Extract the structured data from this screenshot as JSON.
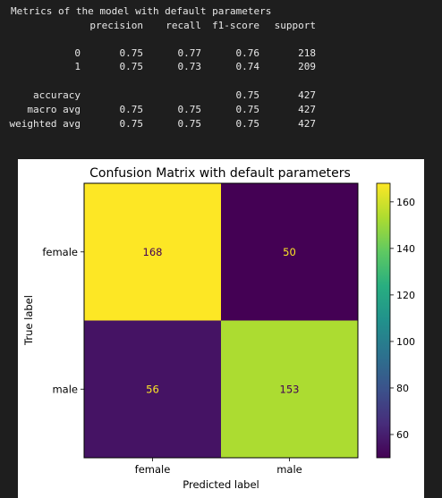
{
  "report": {
    "title": "Metrics of the model with default parameters",
    "headers": [
      "precision",
      "recall",
      "f1-score",
      "support"
    ],
    "rows": [
      {
        "label": "0",
        "precision": "0.75",
        "recall": "0.77",
        "f1": "0.76",
        "support": "218"
      },
      {
        "label": "1",
        "precision": "0.75",
        "recall": "0.73",
        "f1": "0.74",
        "support": "209"
      },
      {
        "label": "accuracy",
        "precision": "",
        "recall": "",
        "f1": "0.75",
        "support": "427"
      },
      {
        "label": "macro avg",
        "precision": "0.75",
        "recall": "0.75",
        "f1": "0.75",
        "support": "427"
      },
      {
        "label": "weighted avg",
        "precision": "0.75",
        "recall": "0.75",
        "f1": "0.75",
        "support": "427"
      }
    ]
  },
  "chart_data": {
    "type": "heatmap",
    "title": "Confusion Matrix with default parameters",
    "xlabel": "Predicted label",
    "ylabel": "True label",
    "x_categories": [
      "female",
      "male"
    ],
    "y_categories": [
      "female",
      "male"
    ],
    "values": [
      [
        168,
        50
      ],
      [
        56,
        153
      ]
    ],
    "colormap": "viridis",
    "colorbar": {
      "range": [
        50,
        168
      ],
      "ticks": [
        60,
        80,
        100,
        120,
        140,
        160
      ]
    },
    "grid": false
  }
}
